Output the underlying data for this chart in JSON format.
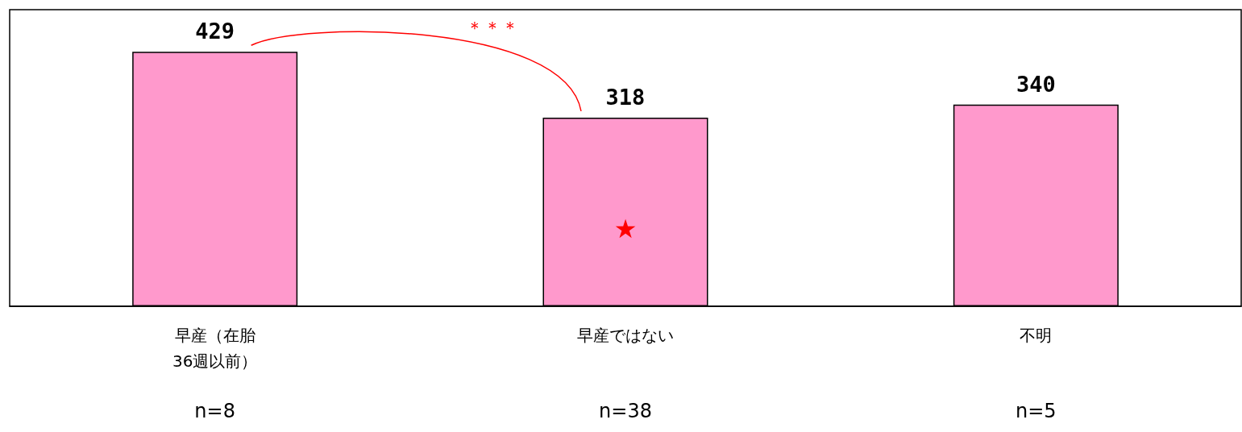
{
  "chart_data": {
    "type": "bar",
    "categories": [
      "早産（在胎\n36週以前）",
      "早産ではない",
      "不明"
    ],
    "values": [
      429,
      318,
      340
    ],
    "color": "#ff99cc",
    "ylim": [
      0,
      500
    ],
    "tick_labels": "x",
    "grid": false,
    "data_labels": true,
    "annotations": [
      "n=8",
      "n=38",
      "n=5",
      "★",
      "＊＊＊"
    ]
  }
}
